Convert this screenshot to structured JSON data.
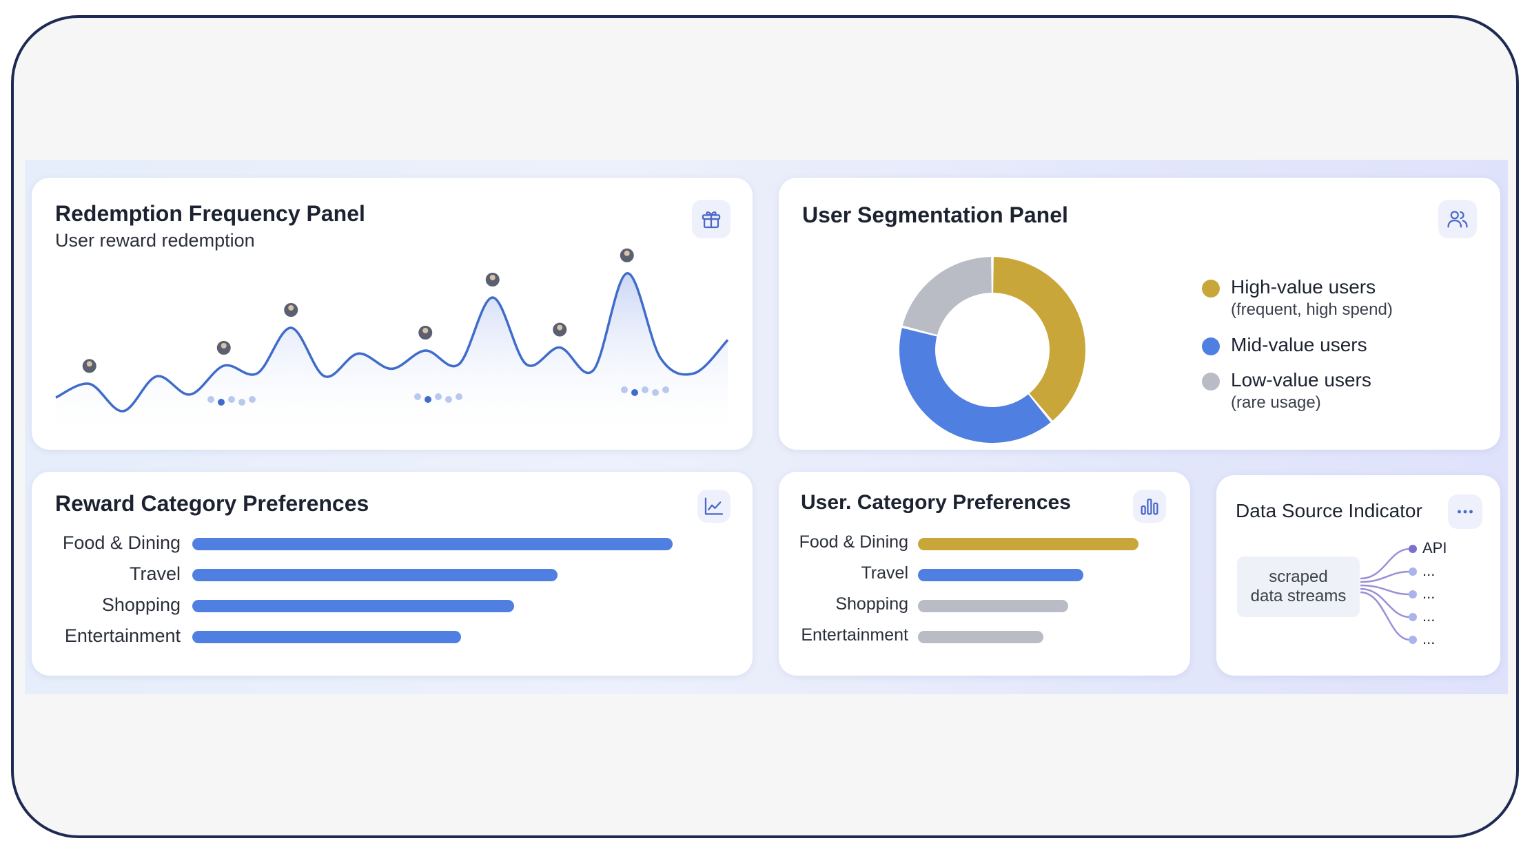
{
  "colors": {
    "blue": "#4f7fe0",
    "gold": "#c9a63a",
    "gray": "#b9bcc4",
    "line": "#3f6cc9",
    "accent_icon": "#4a67c9"
  },
  "redemption_panel": {
    "title": "Redemption Frequency Panel",
    "subtitle": "User reward redemption",
    "icon": "gift-icon"
  },
  "segmentation_panel": {
    "title": "User Segmentation Panel",
    "icon": "users-icon",
    "legend": [
      {
        "label": "High-value users",
        "note": "(frequent, high spend)"
      },
      {
        "label": "Mid-value users",
        "note": ""
      },
      {
        "label": "Low-value users",
        "note": "(rare usage)"
      }
    ]
  },
  "reward_panel": {
    "title": "Reward Category Preferences",
    "icon": "line-chart-icon"
  },
  "user_category_panel": {
    "title": "User. Category Preferences",
    "icon": "bar-chart-icon"
  },
  "data_source_panel": {
    "title": "Data Source Indicator",
    "icon": "more-icon",
    "source_label_1": "scraped",
    "source_label_2": "data streams",
    "outputs": [
      "API",
      "...",
      "...",
      "...",
      "..."
    ]
  },
  "chart_data": [
    {
      "type": "line",
      "series": [
        {
          "values": [
            0.14,
            0.23,
            0.05,
            0.28,
            0.16,
            0.35,
            0.3,
            0.6,
            0.28,
            0.43,
            0.33,
            0.45,
            0.36,
            0.8,
            0.36,
            0.47,
            0.32,
            0.96,
            0.4,
            0.3,
            0.52
          ]
        }
      ]
    },
    {
      "type": "pie",
      "labels": [
        "High-value users",
        "Mid-value users",
        "Low-value users"
      ],
      "values": [
        39,
        40,
        21
      ]
    },
    {
      "type": "bar",
      "categories": [
        "Food & Dining",
        "Travel",
        "Shopping",
        "Entertainment"
      ],
      "values": [
        100,
        76,
        67,
        56
      ]
    },
    {
      "type": "bar",
      "categories": [
        "Food & Dining",
        "Travel",
        "Shopping",
        "Entertainment"
      ],
      "values": [
        100,
        75,
        68,
        57
      ]
    }
  ]
}
